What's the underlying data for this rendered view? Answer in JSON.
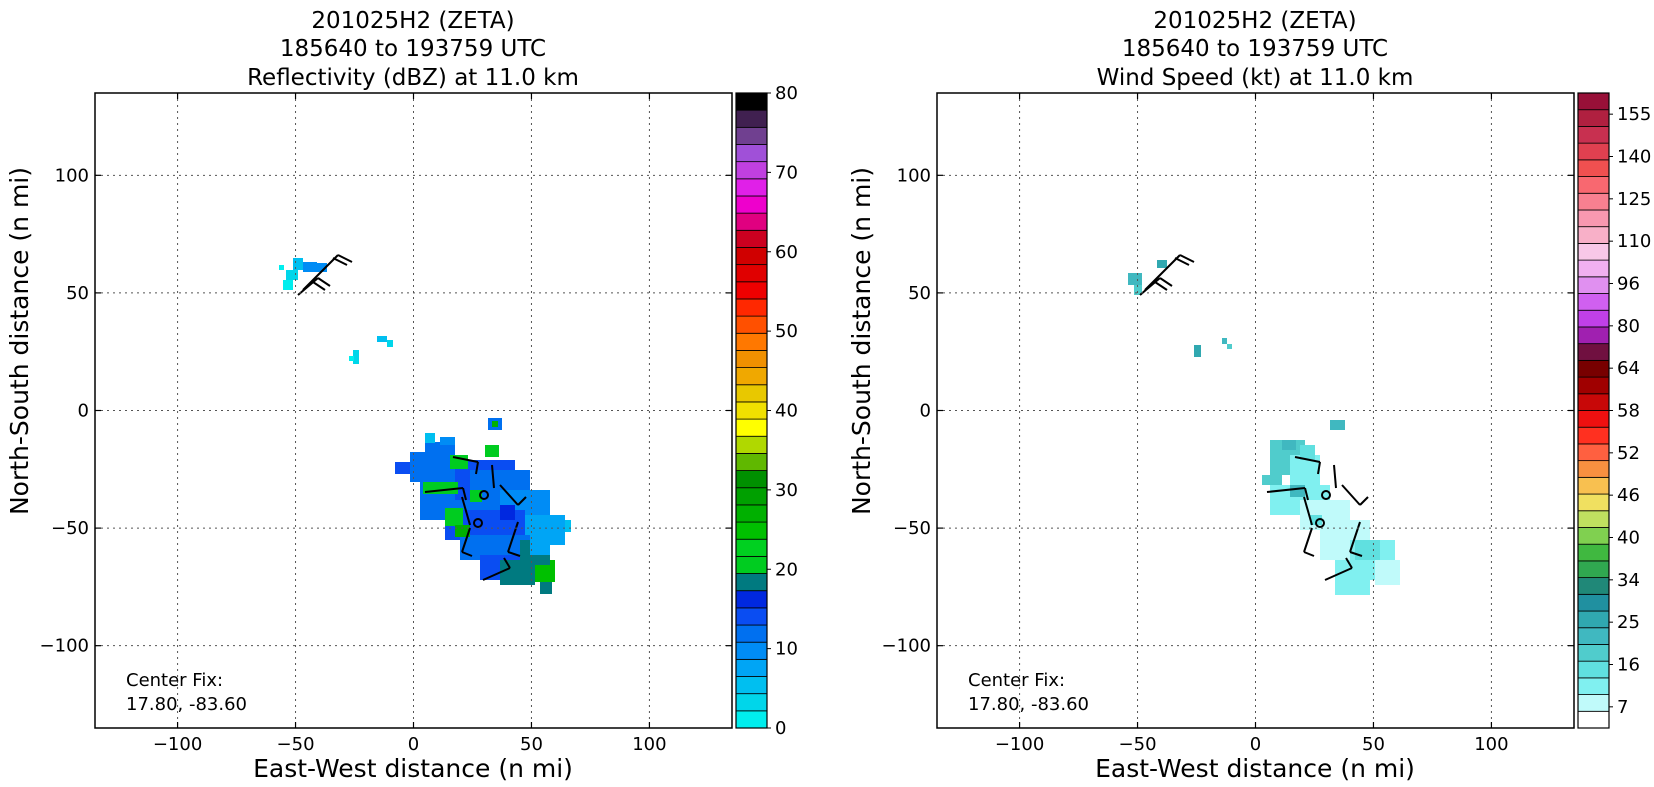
{
  "chart_data": [
    {
      "type": "heatmap",
      "title_lines": [
        "201025H2 (ZETA)",
        "185640 to 193759 UTC",
        "Reflectivity (dBZ) at 11.0 km"
      ],
      "xlabel": "East-West distance (n mi)",
      "ylabel": "North-South distance (n mi)",
      "xlim": [
        -135,
        135
      ],
      "ylim": [
        -135,
        135
      ],
      "xticks": [
        -100,
        -50,
        0,
        50,
        100
      ],
      "yticks": [
        -100,
        -50,
        0,
        50,
        100
      ],
      "grid": true,
      "annotation_lines": [
        "Center Fix:",
        "17.80, -83.60"
      ],
      "colorbar": {
        "tick_labels": [
          "0",
          "10",
          "20",
          "30",
          "40",
          "50",
          "60",
          "70",
          "80"
        ],
        "colors": [
          "#00eeee",
          "#00d6ea",
          "#00bff0",
          "#00a5f5",
          "#008cf5",
          "#0070f0",
          "#0a4df2",
          "#0028e0",
          "#007a80",
          "#00cc20",
          "#00d020",
          "#00c000",
          "#00b000",
          "#00a000",
          "#009000",
          "#60b800",
          "#b0d800",
          "#ffff00",
          "#f0e000",
          "#e8c800",
          "#f0a800",
          "#f09000",
          "#ff7800",
          "#ff5000",
          "#ff2800",
          "#ee0000",
          "#e00000",
          "#d00000",
          "#cc0020",
          "#e00080",
          "#ee00cc",
          "#e020e8",
          "#c040e0",
          "#a050d8",
          "#704090",
          "#402050",
          "#000000"
        ]
      },
      "observations": [
        {
          "region": "NW small cell",
          "x": -50,
          "y": 57,
          "value_range": [
            0,
            10
          ]
        },
        {
          "region": "small cells",
          "x": -20,
          "y": 27,
          "value_range": [
            0,
            5
          ]
        },
        {
          "region": "main band",
          "x": 35,
          "y": -45,
          "value_range": [
            5,
            25
          ]
        }
      ],
      "wind_barbs": [
        {
          "x": -40,
          "y": 62
        },
        {
          "x": -44,
          "y": 55
        },
        {
          "x": 22,
          "y": -20
        },
        {
          "x": 28,
          "y": -38
        },
        {
          "x": 45,
          "y": -43
        },
        {
          "x": 30,
          "y": -48
        },
        {
          "x": 48,
          "y": -55
        },
        {
          "x": 40,
          "y": -66
        }
      ]
    },
    {
      "type": "heatmap",
      "title_lines": [
        "201025H2 (ZETA)",
        "185640 to 193759 UTC",
        "Wind Speed (kt) at 11.0 km"
      ],
      "xlabel": "East-West distance (n mi)",
      "ylabel": "North-South distance (n mi)",
      "xlim": [
        -135,
        135
      ],
      "ylim": [
        -135,
        135
      ],
      "xticks": [
        -100,
        -50,
        0,
        50,
        100
      ],
      "yticks": [
        -100,
        -50,
        0,
        50,
        100
      ],
      "grid": true,
      "annotation_lines": [
        "Center Fix:",
        "17.80, -83.60"
      ],
      "colorbar": {
        "tick_labels": [
          "7",
          "16",
          "25",
          "34",
          "40",
          "46",
          "52",
          "58",
          "64",
          "80",
          "96",
          "110",
          "125",
          "140",
          "155"
        ],
        "colors": [
          "#ffffff",
          "#c0fafa",
          "#80f0f0",
          "#60e0e0",
          "#50cccc",
          "#40b8c0",
          "#30a8b0",
          "#2090a0",
          "#208878",
          "#30a850",
          "#40b840",
          "#80d050",
          "#c0e060",
          "#f0e060",
          "#f8c050",
          "#f89040",
          "#ff6040",
          "#ff3020",
          "#ee1010",
          "#c80808",
          "#a00000",
          "#780000",
          "#701040",
          "#a020b0",
          "#c040e8",
          "#d060f0",
          "#e090f0",
          "#f0b0f0",
          "#f8c8e8",
          "#f8b0c8",
          "#f898b0",
          "#f88090",
          "#f86870",
          "#f05050",
          "#e04050",
          "#c83050",
          "#b02040",
          "#981038"
        ]
      },
      "observations": [
        {
          "region": "NW small cell",
          "x": -50,
          "y": 55,
          "value_range": [
            25,
            34
          ]
        },
        {
          "region": "main band",
          "x": 35,
          "y": -45,
          "value_range": [
            7,
            30
          ]
        }
      ],
      "wind_barbs": [
        {
          "x": -40,
          "y": 62
        },
        {
          "x": -44,
          "y": 55
        },
        {
          "x": 22,
          "y": -20
        },
        {
          "x": 28,
          "y": -38
        },
        {
          "x": 45,
          "y": -43
        },
        {
          "x": 30,
          "y": -48
        },
        {
          "x": 48,
          "y": -55
        },
        {
          "x": 40,
          "y": -66
        }
      ]
    }
  ]
}
